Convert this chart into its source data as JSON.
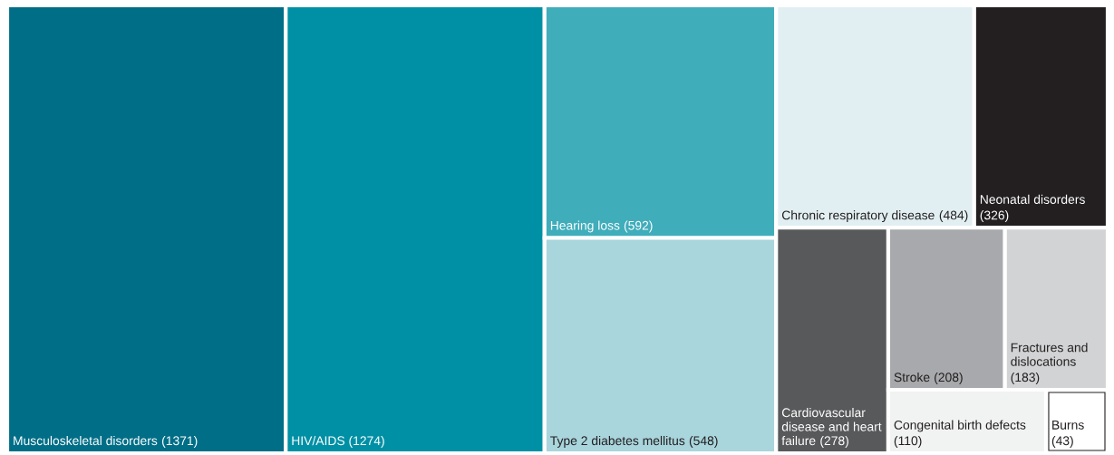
{
  "chart_data": {
    "type": "other",
    "categories": [
      "Musculoskeletal disorders",
      "HIV/AIDS",
      "Hearing loss",
      "Type 2 diabetes mellitus",
      "Chronic respiratory disease",
      "Neonatal disorders",
      "Cardiovascular disease and heart failure",
      "Stroke",
      "Fractures and dislocations",
      "Congenital birth defects",
      "Burns"
    ],
    "values": [
      1371,
      1274,
      592,
      548,
      484,
      326,
      278,
      208,
      183,
      110,
      43
    ],
    "value_labels": [
      "(1371)",
      "(1274)",
      "(592)",
      "(548)",
      "(484)",
      "(326)",
      "(278)",
      "(208)",
      "(183)",
      "(110)",
      "(43)"
    ],
    "colors": [
      "#006e87",
      "#0090a5",
      "#40adbb",
      "#a9d5dc",
      "#e2eff2",
      "#231f20",
      "#58595b",
      "#a7a9ac",
      "#d1d3d4",
      "#f1f2f2",
      "#ffffff"
    ]
  }
}
